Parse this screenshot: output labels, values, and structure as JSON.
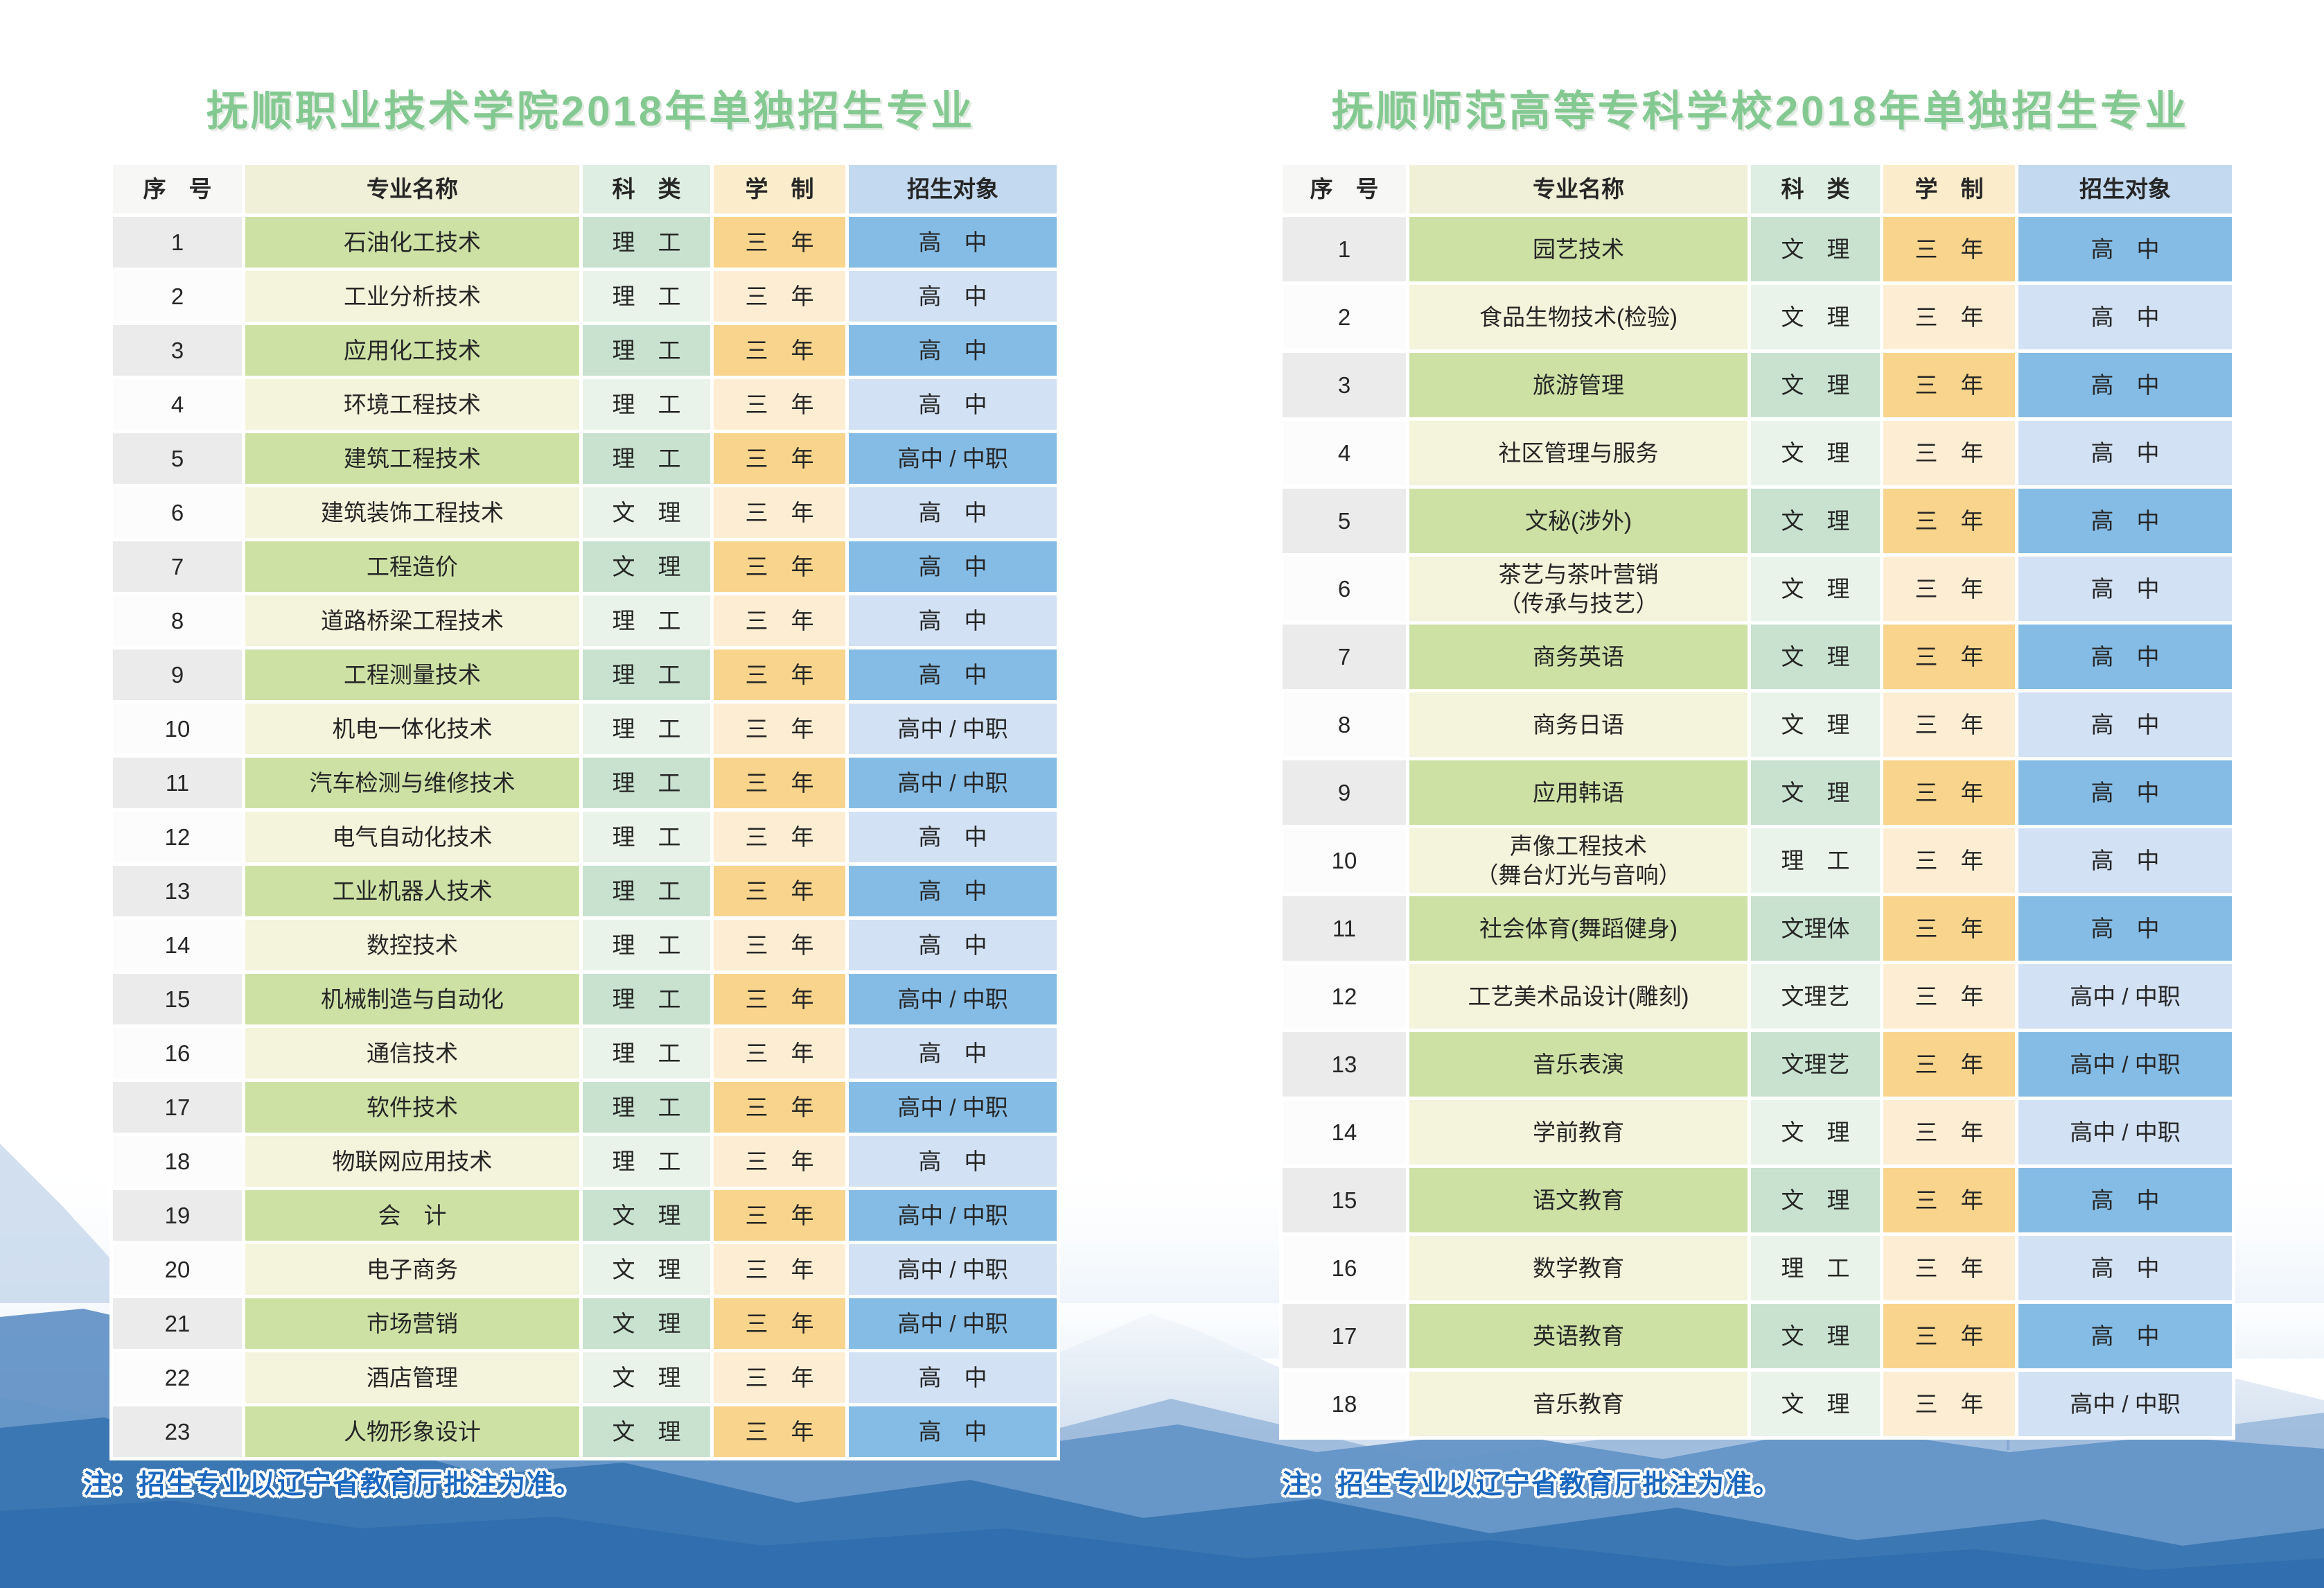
{
  "colors": {
    "title_green": "#84c991",
    "note_blue": "#1a67be",
    "row_odd": {
      "seq": "#ebebeb",
      "name": "#cde1a5",
      "category": "#c8e2cf",
      "duration": "#f8d48c",
      "target": "#85bce5"
    },
    "row_even": {
      "seq": "#fcfcfc",
      "name": "#f4f3db",
      "category": "#eaf3ea",
      "duration": "#fdeed3",
      "target": "#d2e1f3"
    },
    "header": {
      "seq": "#f7f7f5",
      "name": "#f0f0d9",
      "category": "#dfeee2",
      "duration": "#fbeccb",
      "target": "#c3d9ef"
    },
    "mountain_far": "#c9d9ec",
    "mountain_mid": "#9bb9dc",
    "mountain_near": "#6493c6",
    "mountain_fore": "#3b77b3"
  },
  "left_table": {
    "title": "抚顺职业技术学院2018年单独招生专业",
    "note": "注：招生专业以辽宁省教育厅批注为准。",
    "headers": [
      "序　号",
      "专业名称",
      "科　类",
      "学　制",
      "招生对象"
    ],
    "rows": [
      [
        "1",
        "石油化工技术",
        "理　工",
        "三　年",
        "高　中"
      ],
      [
        "2",
        "工业分析技术",
        "理　工",
        "三　年",
        "高　中"
      ],
      [
        "3",
        "应用化工技术",
        "理　工",
        "三　年",
        "高　中"
      ],
      [
        "4",
        "环境工程技术",
        "理　工",
        "三　年",
        "高　中"
      ],
      [
        "5",
        "建筑工程技术",
        "理　工",
        "三　年",
        "高中 / 中职"
      ],
      [
        "6",
        "建筑装饰工程技术",
        "文　理",
        "三　年",
        "高　中"
      ],
      [
        "7",
        "工程造价",
        "文　理",
        "三　年",
        "高　中"
      ],
      [
        "8",
        "道路桥梁工程技术",
        "理　工",
        "三　年",
        "高　中"
      ],
      [
        "9",
        "工程测量技术",
        "理　工",
        "三　年",
        "高　中"
      ],
      [
        "10",
        "机电一体化技术",
        "理　工",
        "三　年",
        "高中 / 中职"
      ],
      [
        "11",
        "汽车检测与维修技术",
        "理　工",
        "三　年",
        "高中 / 中职"
      ],
      [
        "12",
        "电气自动化技术",
        "理　工",
        "三　年",
        "高　中"
      ],
      [
        "13",
        "工业机器人技术",
        "理　工",
        "三　年",
        "高　中"
      ],
      [
        "14",
        "数控技术",
        "理　工",
        "三　年",
        "高　中"
      ],
      [
        "15",
        "机械制造与自动化",
        "理　工",
        "三　年",
        "高中 / 中职"
      ],
      [
        "16",
        "通信技术",
        "理　工",
        "三　年",
        "高　中"
      ],
      [
        "17",
        "软件技术",
        "理　工",
        "三　年",
        "高中 / 中职"
      ],
      [
        "18",
        "物联网应用技术",
        "理　工",
        "三　年",
        "高　中"
      ],
      [
        "19",
        "会　计",
        "文　理",
        "三　年",
        "高中 / 中职"
      ],
      [
        "20",
        "电子商务",
        "文　理",
        "三　年",
        "高中 / 中职"
      ],
      [
        "21",
        "市场营销",
        "文　理",
        "三　年",
        "高中 / 中职"
      ],
      [
        "22",
        "酒店管理",
        "文　理",
        "三　年",
        "高　中"
      ],
      [
        "23",
        "人物形象设计",
        "文　理",
        "三　年",
        "高　中"
      ]
    ]
  },
  "right_table": {
    "title": "抚顺师范高等专科学校2018年单独招生专业",
    "note": "注：招生专业以辽宁省教育厅批注为准。",
    "headers": [
      "序　号",
      "专业名称",
      "科　类",
      "学　制",
      "招生对象"
    ],
    "rows": [
      [
        "1",
        "园艺技术",
        "文　理",
        "三　年",
        "高　中"
      ],
      [
        "2",
        "食品生物技术(检验)",
        "文　理",
        "三　年",
        "高　中"
      ],
      [
        "3",
        "旅游管理",
        "文　理",
        "三　年",
        "高　中"
      ],
      [
        "4",
        "社区管理与服务",
        "文　理",
        "三　年",
        "高　中"
      ],
      [
        "5",
        "文秘(涉外)",
        "文　理",
        "三　年",
        "高　中"
      ],
      [
        "6",
        "茶艺与茶叶营销\n（传承与技艺）",
        "文　理",
        "三　年",
        "高　中"
      ],
      [
        "7",
        "商务英语",
        "文　理",
        "三　年",
        "高　中"
      ],
      [
        "8",
        "商务日语",
        "文　理",
        "三　年",
        "高　中"
      ],
      [
        "9",
        "应用韩语",
        "文　理",
        "三　年",
        "高　中"
      ],
      [
        "10",
        "声像工程技术\n（舞台灯光与音响）",
        "理　工",
        "三　年",
        "高　中"
      ],
      [
        "11",
        "社会体育(舞蹈健身)",
        "文理体",
        "三　年",
        "高　中"
      ],
      [
        "12",
        "工艺美术品设计(雕刻)",
        "文理艺",
        "三　年",
        "高中 / 中职"
      ],
      [
        "13",
        "音乐表演",
        "文理艺",
        "三　年",
        "高中 / 中职"
      ],
      [
        "14",
        "学前教育",
        "文　理",
        "三　年",
        "高中 / 中职"
      ],
      [
        "15",
        "语文教育",
        "文　理",
        "三　年",
        "高　中"
      ],
      [
        "16",
        "数学教育",
        "理　工",
        "三　年",
        "高　中"
      ],
      [
        "17",
        "英语教育",
        "文　理",
        "三　年",
        "高　中"
      ],
      [
        "18",
        "音乐教育",
        "文　理",
        "三　年",
        "高中 / 中职"
      ]
    ]
  }
}
